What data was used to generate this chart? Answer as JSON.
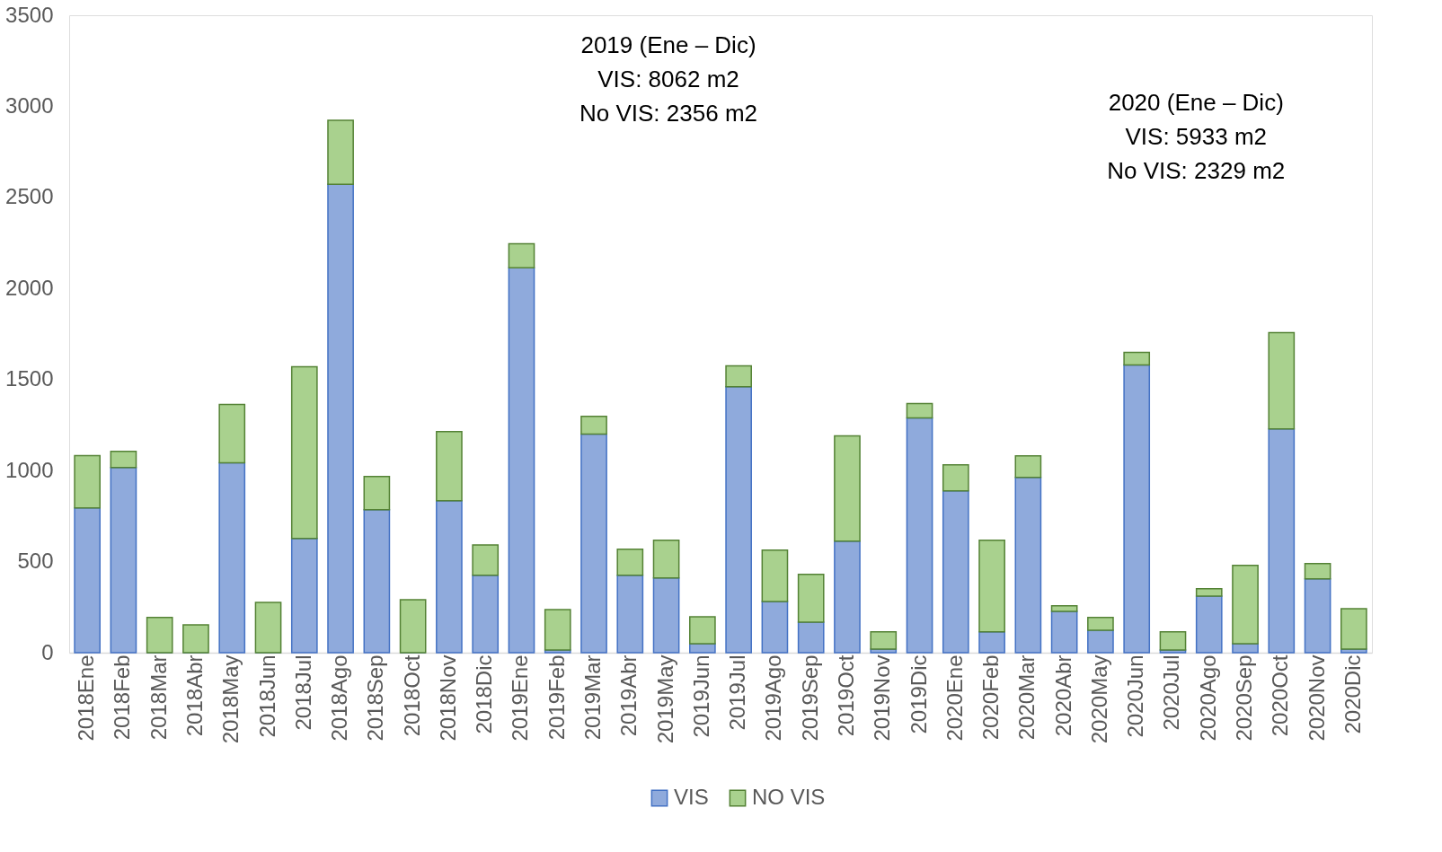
{
  "chart_data": {
    "type": "bar",
    "stacked": true,
    "categories": [
      "2018Ene",
      "2018Feb",
      "2018Mar",
      "2018Abr",
      "2018May",
      "2018Jun",
      "2018Jul",
      "2018Ago",
      "2018Sep",
      "2018Oct",
      "2018Nov",
      "2018Dic",
      "2019Ene",
      "2019Feb",
      "2019Mar",
      "2019Abr",
      "2019May",
      "2019Jun",
      "2019Jul",
      "2019Ago",
      "2019Sep",
      "2019Oct",
      "2019Nov",
      "2019Dic",
      "2020Ene",
      "2020Feb",
      "2020Mar",
      "2020Abr",
      "2020May",
      "2020Jun",
      "2020Jul",
      "2020Ago",
      "2020Sep",
      "2020Oct",
      "2020Nov",
      "2020Dic"
    ],
    "series": [
      {
        "name": "VIS",
        "color": "#8faadc",
        "values": [
          795,
          1017,
          0,
          0,
          1042,
          0,
          627,
          2572,
          785,
          0,
          834,
          425,
          2113,
          15,
          1200,
          425,
          410,
          49,
          1461,
          281,
          168,
          612,
          20,
          1289,
          889,
          114,
          963,
          227,
          123,
          1580,
          15,
          311,
          49,
          1229,
          405,
          20
        ]
      },
      {
        "name": "NO VIS",
        "color": "#a9d18e",
        "values": [
          287,
          89,
          193,
          153,
          321,
          276,
          943,
          351,
          183,
          291,
          380,
          167,
          133,
          222,
          98,
          143,
          207,
          148,
          114,
          282,
          262,
          578,
          94,
          79,
          143,
          503,
          118,
          30,
          70,
          69,
          99,
          40,
          430,
          529,
          84,
          222
        ]
      }
    ],
    "ylim": [
      0,
      3500
    ],
    "yticks": [
      0,
      500,
      1000,
      1500,
      2000,
      2500,
      3000,
      3500
    ],
    "grid": false,
    "legend": "bottom",
    "annotations": [
      "2019 (Ene – Dic)\nVIS: 8062 m2\nNo VIS: 2356 m2",
      "2020 (Ene – Dic)\nVIS: 5933 m2\nNo VIS: 2329 m2"
    ]
  }
}
